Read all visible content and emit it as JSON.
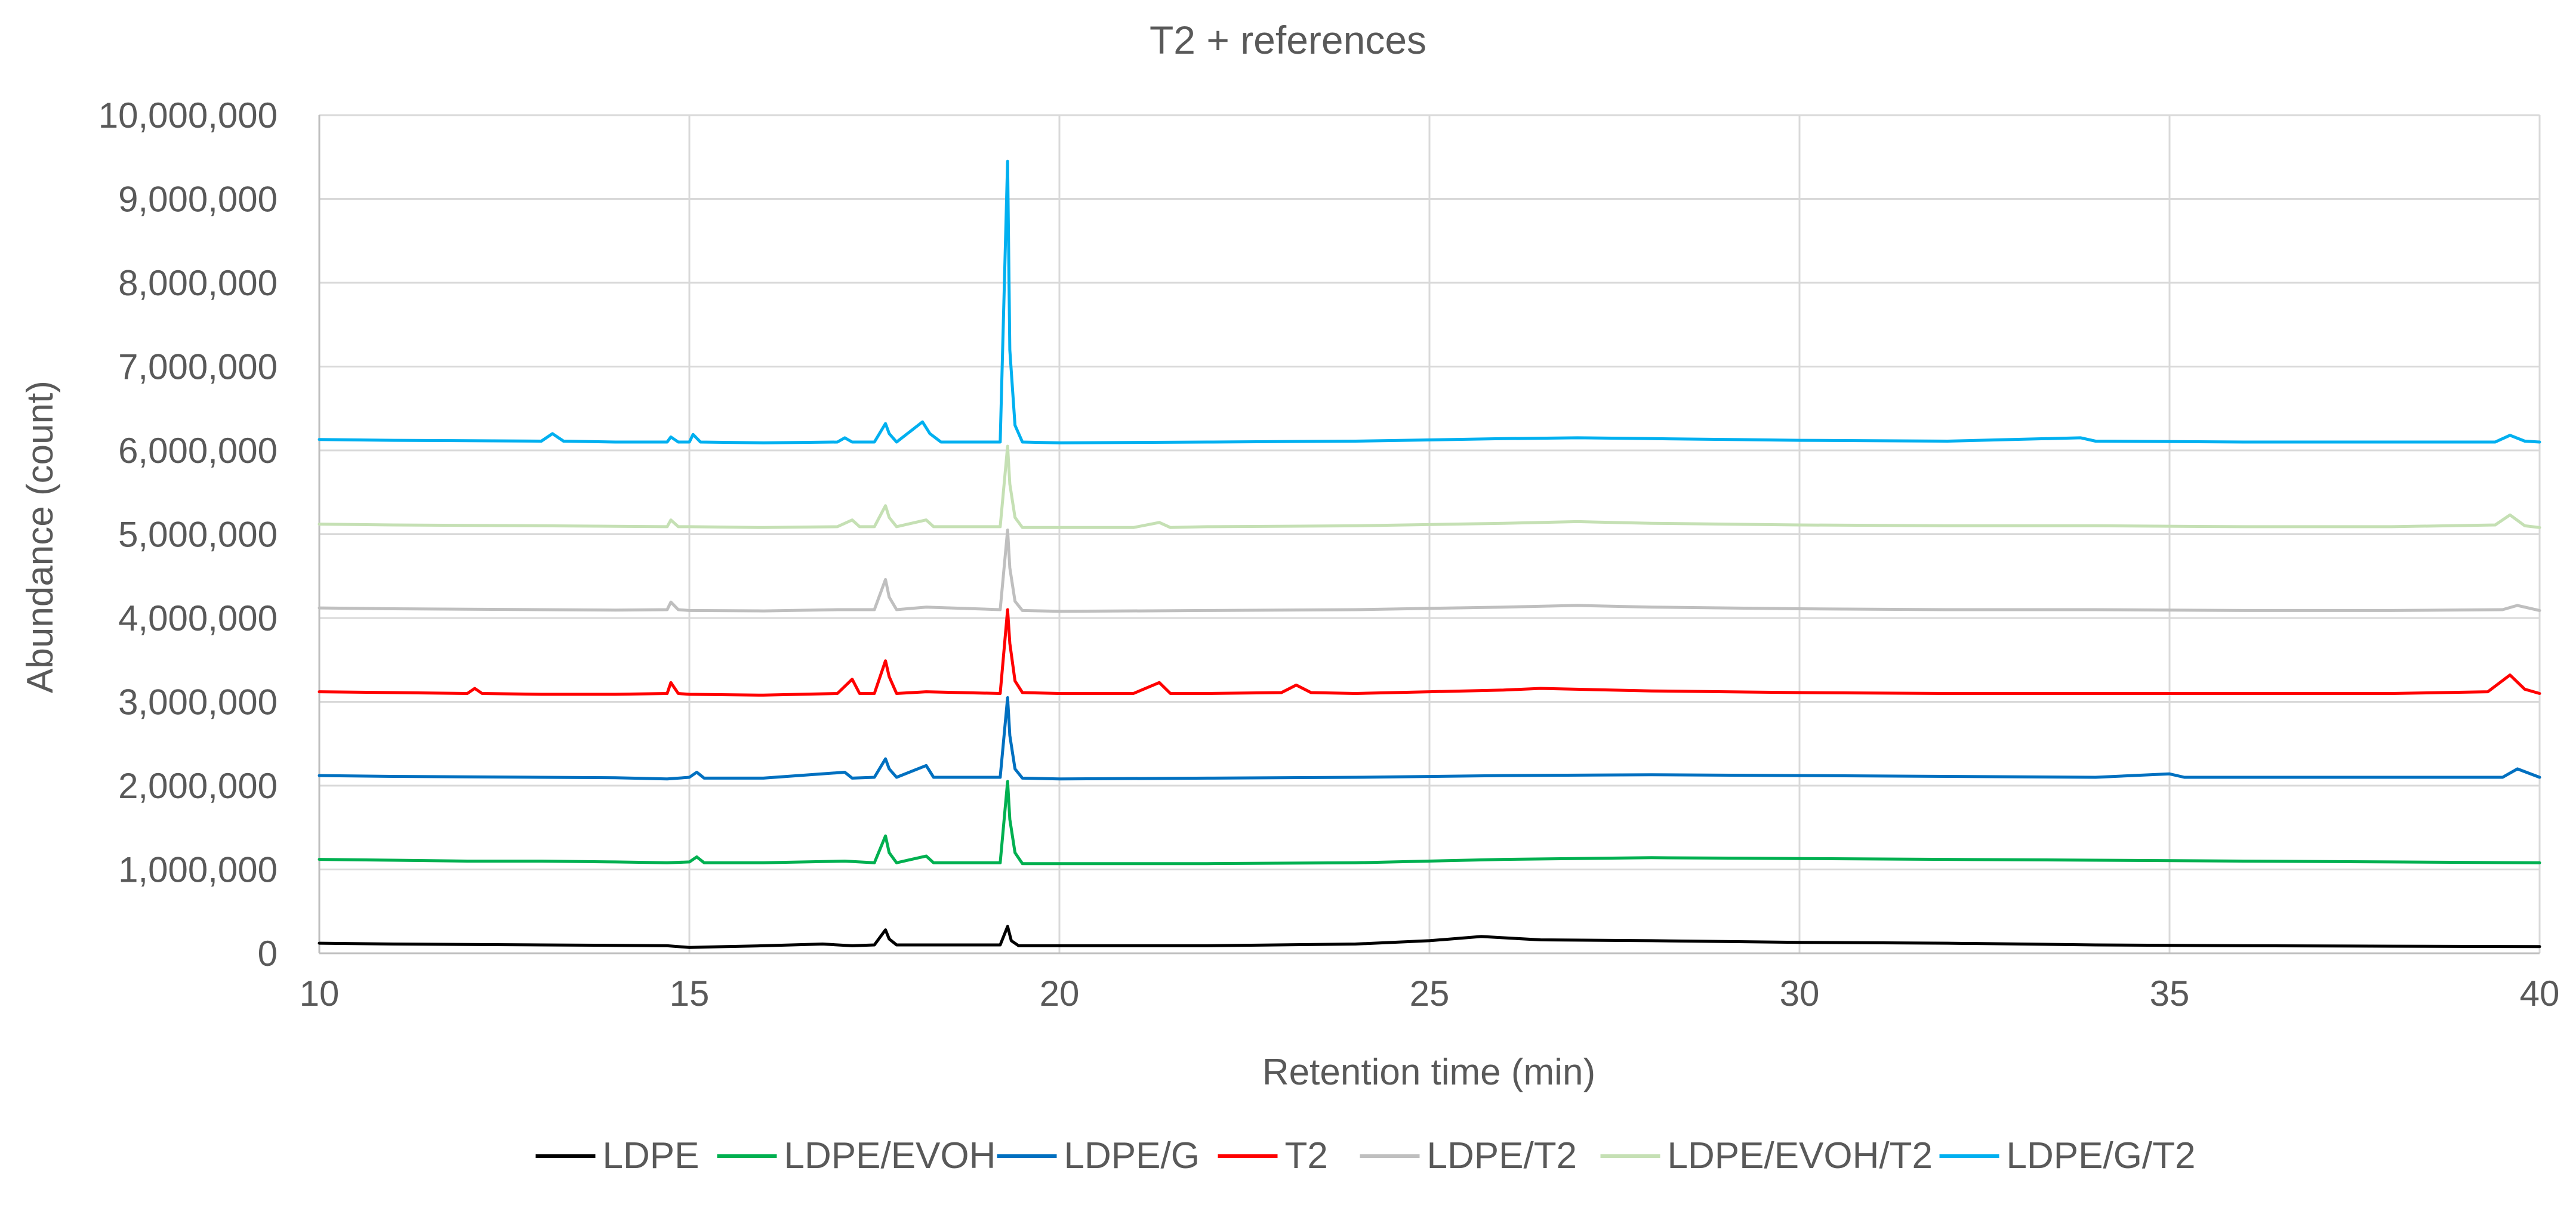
{
  "chart_data": {
    "type": "line",
    "title": "T2 + references",
    "xlabel": "Retention time (min)",
    "ylabel": "Abundance (count)",
    "xlim": [
      10,
      40
    ],
    "ylim": [
      0,
      10000000
    ],
    "x_ticks": [
      10,
      15,
      20,
      25,
      30,
      35,
      40
    ],
    "y_ticks": [
      0,
      1000000,
      2000000,
      3000000,
      4000000,
      5000000,
      6000000,
      7000000,
      8000000,
      9000000,
      10000000
    ],
    "x_tick_labels": [
      "10",
      "15",
      "20",
      "25",
      "30",
      "35",
      "40"
    ],
    "y_tick_labels": [
      "0",
      "1,000,000",
      "2,000,000",
      "3,000,000",
      "4,000,000",
      "5,000,000",
      "6,000,000",
      "7,000,000",
      "8,000,000",
      "9,000,000",
      "10,000,000"
    ],
    "grid": true,
    "legend_position": "bottom",
    "series": [
      {
        "name": "LDPE",
        "color": "#000000",
        "x": [
          10,
          11,
          12,
          13,
          14,
          14.7,
          15,
          15.5,
          16,
          16.8,
          17.2,
          17.5,
          17.65,
          17.7,
          17.8,
          18.2,
          19.2,
          19.3,
          19.35,
          19.45,
          20,
          22,
          24,
          25,
          25.7,
          26.5,
          28,
          30,
          32,
          34,
          36,
          38,
          40
        ],
        "values": [
          120000,
          110000,
          105000,
          100000,
          95000,
          90000,
          70000,
          80000,
          90000,
          110000,
          90000,
          100000,
          280000,
          170000,
          100000,
          100000,
          100000,
          320000,
          150000,
          90000,
          90000,
          90000,
          110000,
          150000,
          200000,
          160000,
          150000,
          130000,
          120000,
          100000,
          90000,
          85000,
          80000
        ]
      },
      {
        "name": "LDPE/EVOH",
        "color": "#00b050",
        "x": [
          10,
          11,
          12,
          13,
          14,
          14.7,
          15,
          15.1,
          15.2,
          16,
          17.1,
          17.5,
          17.65,
          17.7,
          17.8,
          18.2,
          18.3,
          19.2,
          19.3,
          19.33,
          19.4,
          19.5,
          20,
          22,
          24,
          26,
          28,
          30,
          32,
          34,
          36,
          38,
          40
        ],
        "values": [
          1120000,
          1110000,
          1100000,
          1100000,
          1090000,
          1080000,
          1090000,
          1150000,
          1080000,
          1080000,
          1100000,
          1080000,
          1400000,
          1200000,
          1080000,
          1160000,
          1080000,
          1080000,
          2050000,
          1600000,
          1200000,
          1070000,
          1070000,
          1070000,
          1080000,
          1120000,
          1140000,
          1130000,
          1120000,
          1110000,
          1100000,
          1090000,
          1080000
        ]
      },
      {
        "name": "LDPE/G",
        "color": "#0070c0",
        "x": [
          10,
          11,
          12,
          13,
          14,
          14.7,
          15,
          15.1,
          15.2,
          16,
          17.1,
          17.2,
          17.5,
          17.65,
          17.7,
          17.8,
          18.2,
          18.3,
          19.2,
          19.3,
          19.33,
          19.4,
          19.5,
          20,
          22,
          24,
          26,
          28,
          30,
          32,
          34,
          35,
          35.2,
          36,
          38,
          39.5,
          39.7,
          40
        ],
        "values": [
          2120000,
          2110000,
          2105000,
          2100000,
          2095000,
          2080000,
          2100000,
          2160000,
          2090000,
          2090000,
          2160000,
          2090000,
          2100000,
          2320000,
          2200000,
          2100000,
          2240000,
          2100000,
          2100000,
          3050000,
          2600000,
          2200000,
          2090000,
          2080000,
          2090000,
          2100000,
          2120000,
          2130000,
          2120000,
          2110000,
          2100000,
          2140000,
          2100000,
          2100000,
          2100000,
          2100000,
          2200000,
          2100000
        ]
      },
      {
        "name": "T2",
        "color": "#ff0000",
        "x": [
          10,
          11,
          12,
          12.1,
          12.2,
          13,
          14,
          14.7,
          14.75,
          14.85,
          15,
          16,
          17,
          17.2,
          17.3,
          17.5,
          17.65,
          17.7,
          17.8,
          18.2,
          19.2,
          19.3,
          19.33,
          19.4,
          19.5,
          20,
          21,
          21.35,
          21.5,
          22,
          23,
          23.2,
          23.4,
          24,
          25,
          26,
          26.5,
          28,
          30,
          32,
          34,
          36,
          38,
          39.3,
          39.6,
          39.8,
          40
        ],
        "values": [
          3120000,
          3110000,
          3100000,
          3160000,
          3100000,
          3090000,
          3090000,
          3100000,
          3230000,
          3100000,
          3090000,
          3080000,
          3100000,
          3270000,
          3100000,
          3100000,
          3490000,
          3300000,
          3100000,
          3120000,
          3100000,
          4100000,
          3700000,
          3250000,
          3110000,
          3100000,
          3100000,
          3230000,
          3100000,
          3100000,
          3110000,
          3200000,
          3110000,
          3100000,
          3120000,
          3140000,
          3160000,
          3130000,
          3110000,
          3100000,
          3100000,
          3100000,
          3100000,
          3120000,
          3320000,
          3150000,
          3100000
        ]
      },
      {
        "name": "LDPE/T2",
        "color": "#bfbfbf",
        "x": [
          10,
          11,
          12,
          13,
          14,
          14.7,
          14.75,
          14.85,
          15,
          16,
          17,
          17.5,
          17.65,
          17.7,
          17.8,
          18.2,
          19.2,
          19.3,
          19.33,
          19.4,
          19.5,
          20,
          22,
          24,
          26,
          27,
          28,
          30,
          32,
          34,
          36,
          38,
          39.5,
          39.7,
          40
        ],
        "values": [
          4120000,
          4110000,
          4105000,
          4100000,
          4095000,
          4100000,
          4190000,
          4100000,
          4090000,
          4085000,
          4100000,
          4100000,
          4460000,
          4250000,
          4100000,
          4130000,
          4100000,
          5050000,
          4600000,
          4200000,
          4090000,
          4080000,
          4090000,
          4100000,
          4130000,
          4150000,
          4130000,
          4110000,
          4100000,
          4100000,
          4090000,
          4090000,
          4100000,
          4150000,
          4090000
        ]
      },
      {
        "name": "LDPE/EVOH/T2",
        "color": "#c5e0b4",
        "x": [
          10,
          11,
          12,
          13,
          14,
          14.7,
          14.75,
          14.85,
          15,
          16,
          17,
          17.2,
          17.3,
          17.5,
          17.65,
          17.7,
          17.8,
          18.2,
          18.3,
          19.2,
          19.3,
          19.33,
          19.4,
          19.5,
          20,
          21,
          21.35,
          21.5,
          22,
          24,
          26,
          27,
          28,
          30,
          32,
          34,
          36,
          38,
          39.4,
          39.6,
          39.8,
          40
        ],
        "values": [
          5120000,
          5110000,
          5105000,
          5100000,
          5095000,
          5090000,
          5170000,
          5090000,
          5090000,
          5080000,
          5090000,
          5170000,
          5090000,
          5090000,
          5340000,
          5200000,
          5090000,
          5170000,
          5090000,
          5090000,
          6050000,
          5600000,
          5200000,
          5080000,
          5080000,
          5080000,
          5140000,
          5080000,
          5090000,
          5100000,
          5130000,
          5150000,
          5130000,
          5110000,
          5100000,
          5100000,
          5090000,
          5090000,
          5110000,
          5230000,
          5100000,
          5080000
        ]
      },
      {
        "name": "LDPE/G/T2",
        "color": "#00b0f0",
        "x": [
          10,
          11,
          12,
          13,
          13.15,
          13.3,
          14,
          14.7,
          14.75,
          14.85,
          15,
          15.05,
          15.15,
          16,
          17,
          17.1,
          17.2,
          17.5,
          17.65,
          17.7,
          17.8,
          18.15,
          18.25,
          18.4,
          19.2,
          19.3,
          19.33,
          19.4,
          19.5,
          20,
          22,
          24,
          26,
          27,
          28,
          30,
          32,
          33.8,
          34,
          36,
          38,
          39.4,
          39.6,
          39.8,
          40
        ],
        "values": [
          6130000,
          6120000,
          6115000,
          6110000,
          6200000,
          6110000,
          6100000,
          6100000,
          6160000,
          6100000,
          6100000,
          6190000,
          6100000,
          6090000,
          6100000,
          6150000,
          6100000,
          6100000,
          6320000,
          6200000,
          6100000,
          6340000,
          6200000,
          6100000,
          6100000,
          9450000,
          7200000,
          6300000,
          6100000,
          6090000,
          6100000,
          6110000,
          6140000,
          6150000,
          6140000,
          6120000,
          6110000,
          6150000,
          6110000,
          6100000,
          6100000,
          6100000,
          6180000,
          6110000,
          6100000
        ]
      }
    ]
  }
}
